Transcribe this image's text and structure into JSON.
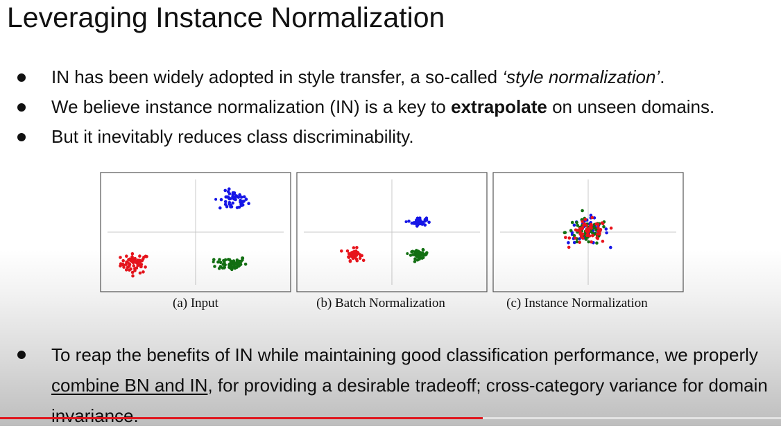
{
  "slide": {
    "title": "Leveraging Instance Normalization",
    "bullets": [
      {
        "parts": [
          {
            "text": "IN has been widely adopted in style transfer, a so-called ",
            "style": "normal"
          },
          {
            "text": "‘style normalization’",
            "style": "italic"
          },
          {
            "text": ".",
            "style": "normal"
          }
        ]
      },
      {
        "parts": [
          {
            "text": "We believe instance normalization (IN) is a key to ",
            "style": "normal"
          },
          {
            "text": "extrapolate",
            "style": "bold"
          },
          {
            "text": " on unseen domains.",
            "style": "normal"
          }
        ]
      },
      {
        "parts": [
          {
            "text": "But it inevitably reduces class discriminability.",
            "style": "normal"
          }
        ]
      }
    ],
    "bottom_bullet": {
      "parts": [
        {
          "text": "To reap the benefits of IN while maintaining good classification performance, we properly ",
          "style": "normal"
        },
        {
          "text": "combine BN and IN",
          "style": "underline"
        },
        {
          "text": ", for providing a desirable tradeoff; cross-category variance for domain invariance.",
          "style": "normal"
        }
      ]
    }
  },
  "colors": {
    "red": "#e8141c",
    "blue": "#1616e6",
    "green": "#127012",
    "axis": "#c8c8c8",
    "progress": "#e0161e"
  },
  "video": {
    "progress_fraction": 0.618
  },
  "chart_data": [
    {
      "type": "scatter",
      "caption": "(a) Input",
      "series": [
        {
          "color": "red",
          "center": [
            -2.55,
            -1.05
          ],
          "spread": [
            0.3,
            0.16
          ],
          "count": 60
        },
        {
          "color": "blue",
          "center": [
            1.6,
            1.05
          ],
          "spread": [
            0.3,
            0.16
          ],
          "count": 50
        },
        {
          "color": "green",
          "center": [
            1.5,
            -1.05
          ],
          "spread": [
            0.32,
            0.12
          ],
          "count": 60
        }
      ],
      "outliers": [
        {
          "color": "blue",
          "x": 0.85,
          "y": 1.1
        },
        {
          "color": "green",
          "x": 0.75,
          "y": -1.0
        }
      ]
    },
    {
      "type": "scatter",
      "caption": "(b) Batch Normalization",
      "series": [
        {
          "color": "red",
          "center": [
            -1.6,
            -0.75
          ],
          "spread": [
            0.15,
            0.1
          ],
          "count": 45
        },
        {
          "color": "blue",
          "center": [
            1.15,
            0.35
          ],
          "spread": [
            0.15,
            0.07
          ],
          "count": 40
        },
        {
          "color": "green",
          "center": [
            1.15,
            -0.75
          ],
          "spread": [
            0.18,
            0.07
          ],
          "count": 45
        }
      ],
      "outliers": [
        {
          "color": "blue",
          "x": 0.6,
          "y": 0.35
        },
        {
          "color": "green",
          "x": 0.65,
          "y": -0.72
        }
      ]
    },
    {
      "type": "scatter",
      "caption": "(c) Instance Normalization",
      "series": [
        {
          "color": "blue",
          "center": [
            0.0,
            0.05
          ],
          "spread": [
            0.42,
            0.22
          ],
          "count": 55
        },
        {
          "color": "green",
          "center": [
            -0.05,
            0.0
          ],
          "spread": [
            0.45,
            0.22
          ],
          "count": 55
        },
        {
          "color": "red",
          "center": [
            0.05,
            0.0
          ],
          "spread": [
            0.38,
            0.2
          ],
          "count": 55
        }
      ],
      "outliers": []
    }
  ]
}
